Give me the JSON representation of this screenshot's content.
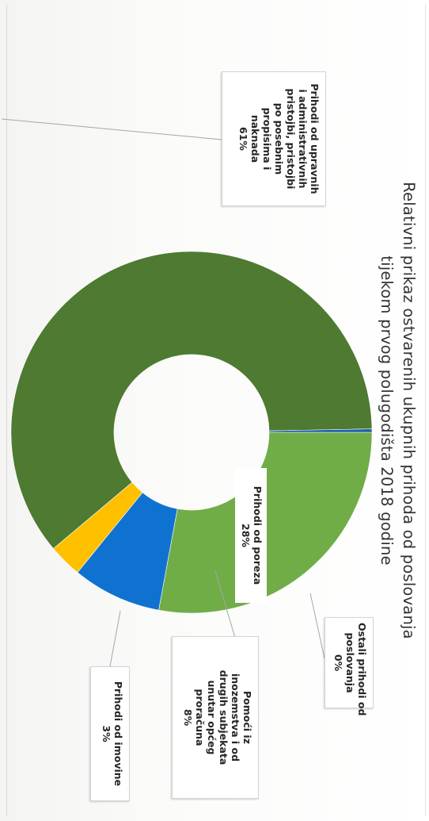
{
  "chart_data": {
    "type": "donut",
    "title_lines": [
      "Relativni prikaz ostvarenih ukupnih prihoda od poslovanja",
      "tijekom prvog polugodišta 2018 godine"
    ],
    "slices": [
      {
        "label_lines": [
          "Prihodi od poreza",
          "28%"
        ],
        "value": 28,
        "color": "#70ad47"
      },
      {
        "label_lines": [
          "Pomoći iz",
          "inozemstva i od",
          "drugih subjekata",
          "unutar općeg",
          "proračuna",
          "8%"
        ],
        "value": 8,
        "color": "#0f72d1"
      },
      {
        "label_lines": [
          "Prihodi od imovine",
          "3%"
        ],
        "value": 3,
        "color": "#ffc000"
      },
      {
        "label_lines": [
          "Prihodi od upravnih",
          "i administrativnih",
          "pristojbi, pristojbi",
          "po posebnim",
          "propisima i",
          "naknada",
          "61%"
        ],
        "value": 61,
        "color": "#4e7a31"
      },
      {
        "label_lines": [
          "Ostali prihodi od",
          "poslovanja",
          "0%"
        ],
        "value": 0.3,
        "color": "#1f5fae"
      }
    ],
    "legend": "none"
  }
}
